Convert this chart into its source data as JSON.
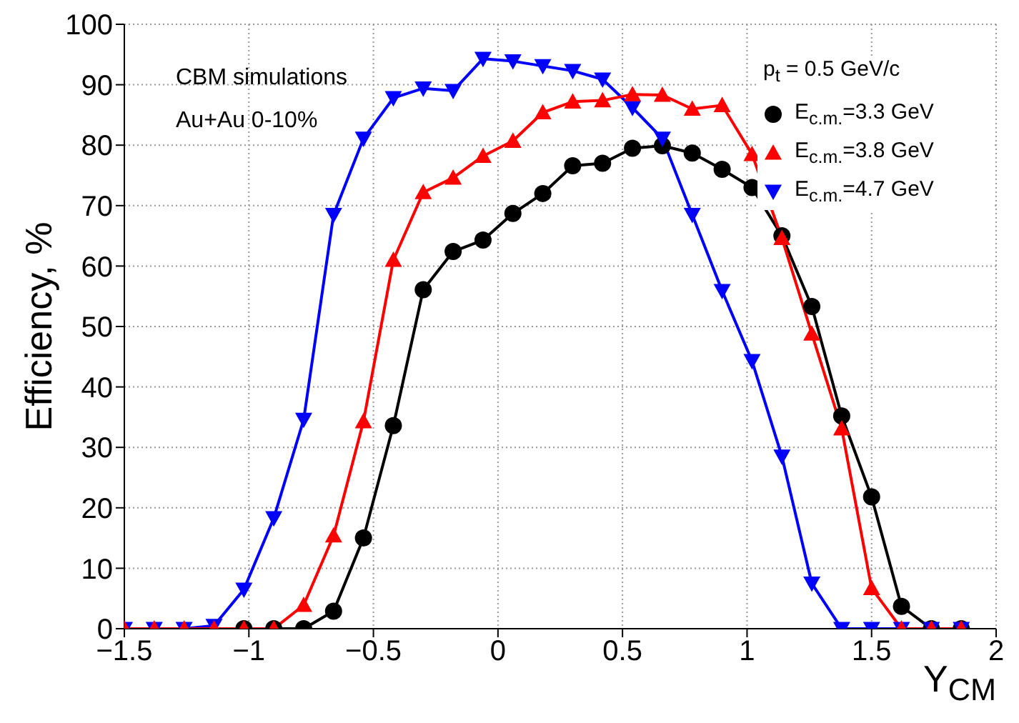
{
  "chart_data": {
    "type": "line",
    "xlabel": "Y$_{CM}$",
    "ylabel": "Efficiency, %",
    "legend_title": "p$_{t}$ = 0.5 GeV/c",
    "annotations": [
      "CBM simulations",
      "Au+Au 0-10%"
    ],
    "x": [
      -1.5,
      -1.38,
      -1.26,
      -1.14,
      -1.02,
      -0.9,
      -0.78,
      -0.66,
      -0.54,
      -0.42,
      -0.3,
      -0.18,
      -0.06,
      0.06,
      0.18,
      0.3,
      0.42,
      0.54,
      0.66,
      0.78,
      0.9,
      1.02,
      1.14,
      1.26,
      1.38,
      1.5,
      1.62,
      1.74,
      1.86
    ],
    "series": [
      {
        "name": "E$_{c.m.}$=3.3 GeV",
        "color": "#000000",
        "marker": "circle",
        "values": [
          null,
          null,
          null,
          null,
          0,
          0,
          0,
          2.9,
          15,
          33.6,
          56.1,
          62.4,
          64.3,
          68.7,
          72,
          76.6,
          77,
          79.5,
          79.9,
          78.7,
          76,
          73,
          65,
          53.3,
          35.2,
          21.8,
          3.7,
          0,
          0
        ]
      },
      {
        "name": "E$_{c.m.}$=3.8 GeV",
        "color": "#ff0000",
        "marker": "triangle",
        "values": [
          0,
          0,
          0,
          0,
          0,
          0,
          3.9,
          15.4,
          34.3,
          61,
          72.2,
          74.6,
          78.2,
          80.7,
          85.4,
          87.2,
          87.4,
          88.4,
          88.3,
          86,
          86.6,
          78.5,
          64.6,
          48.8,
          33.1,
          6.7,
          0,
          0,
          0
        ]
      },
      {
        "name": "E$_{c.m.}$=4.7 GeV",
        "color": "#0000ff",
        "marker": "triangle-down",
        "values": [
          0,
          0,
          0,
          0.5,
          6.5,
          18.3,
          34.6,
          68.5,
          81.1,
          87.8,
          89.4,
          89,
          94.3,
          93.9,
          93.1,
          92.3,
          90.9,
          86.2,
          81.1,
          68.5,
          55.9,
          44.3,
          28.5,
          7.5,
          0,
          0,
          0,
          0,
          0
        ]
      }
    ],
    "xlim": [
      -1.5,
      2
    ],
    "xticks": [
      {
        "value": -1.5,
        "label": "−1.5"
      },
      {
        "value": -1,
        "label": "−1"
      },
      {
        "value": -0.5,
        "label": "−0.5"
      },
      0,
      0.5,
      1,
      1.5,
      2
    ],
    "ylim": [
      0,
      100
    ],
    "yticks": [
      0,
      10,
      20,
      30,
      40,
      50,
      60,
      70,
      80,
      90,
      100
    ],
    "grid": true,
    "legend": "top right",
    "line_style": "solid"
  }
}
